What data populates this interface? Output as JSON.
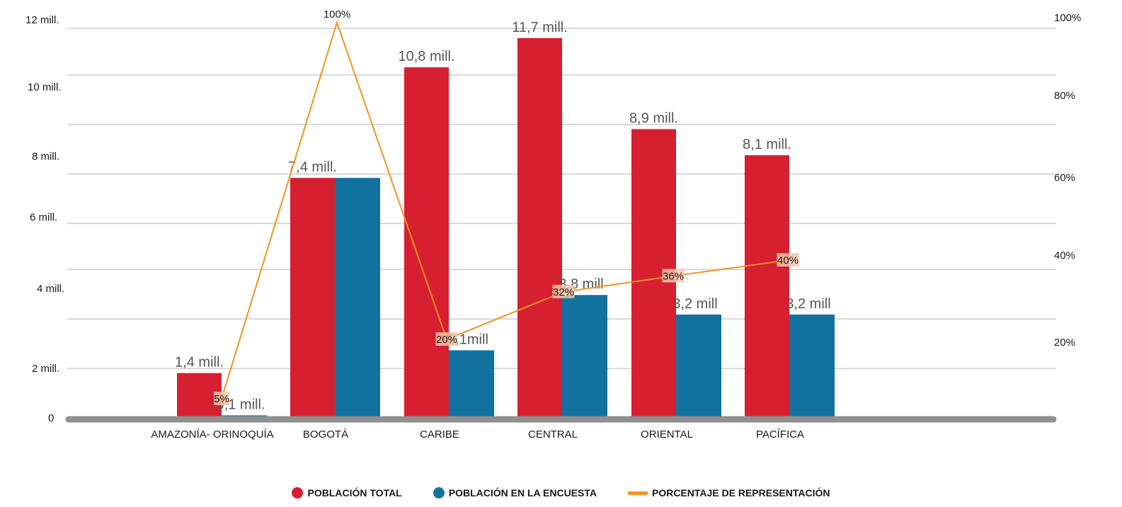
{
  "colors": {
    "poblacion_total": "#d61f30",
    "poblacion_encuesta": "#12729f",
    "porcentaje": "#f39323",
    "grid": "#d9d9d9",
    "axis": "#909090",
    "pct_label_bg": "#f4c5a8"
  },
  "legend": {
    "items": [
      {
        "label": "POBLACIÓN TOTAL",
        "marker": "circle"
      },
      {
        "label": "POBLACIÓN EN LA ENCUESTA",
        "marker": "circle"
      },
      {
        "label": "PORCENTAJE DE REPRESENTACIÓN",
        "marker": "line"
      }
    ]
  },
  "chart_data": {
    "type": "bar",
    "categories": [
      "AMAZONÍA- ORINOQUÍA",
      "BOGOTÁ",
      "CARIBE",
      "CENTRAL",
      "ORIENTAL",
      "PACÍFICA"
    ],
    "series": [
      {
        "name": "POBLACIÓN TOTAL",
        "values": [
          1.4,
          7.4,
          10.8,
          11.7,
          8.9,
          8.1
        ],
        "labels": [
          "1,4 mill.",
          "7,4 mill.",
          "10,8 mill.",
          "11,7 mill.",
          "8,9 mill.",
          "8,1 mill."
        ]
      },
      {
        "name": "POBLACIÓN EN LA ENCUESTA",
        "values": [
          0.1,
          7.4,
          2.1,
          3.8,
          3.2,
          3.2
        ],
        "labels": [
          "0,1 mill.",
          "",
          "2,1mill",
          "3,8 mill",
          "3,2 mill",
          "3,2 mill"
        ]
      },
      {
        "name": "PORCENTAJE DE REPRESENTACIÓN",
        "type": "line",
        "axis": "right",
        "values": [
          5,
          100,
          20,
          32,
          36,
          40
        ],
        "labels": [
          "5%",
          "100%",
          "20%",
          "32%",
          "36%",
          "40%"
        ]
      }
    ],
    "y_left": {
      "ticks": [
        0,
        2,
        4,
        6,
        8,
        10,
        12
      ],
      "tick_labels": [
        "0",
        "2 mill.",
        "4 mill.",
        "6 mill.",
        "8 mill.",
        "10 mill.",
        "12 mill."
      ],
      "range": [
        0,
        12
      ]
    },
    "y_right": {
      "tick_values": [
        20,
        40,
        60,
        80,
        100
      ],
      "tick_labels": [
        "20%",
        "40%",
        "60%",
        "80%",
        "100%"
      ],
      "range": [
        0,
        100
      ]
    },
    "grid": true,
    "legend_position": "bottom"
  }
}
